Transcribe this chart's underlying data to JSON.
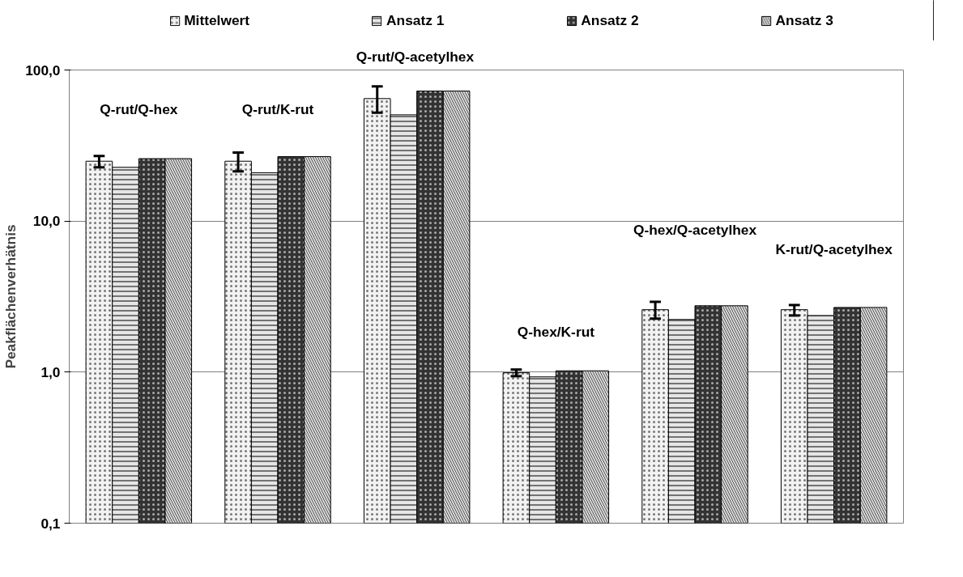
{
  "chart_data": {
    "type": "bar",
    "categories": [
      null,
      null,
      null,
      null,
      null,
      null
    ],
    "series": [
      {
        "name": "Mittelwert",
        "color": "#f2f2f2",
        "values": [
          24.9,
          24.9,
          64.7,
          0.99,
          2.59,
          2.59
        ],
        "errors": [
          [
            22.7,
            27.0
          ],
          [
            21.3,
            28.4
          ],
          [
            52.2,
            77.8
          ],
          [
            0.94,
            1.04
          ],
          [
            2.26,
            2.92
          ],
          [
            2.37,
            2.78
          ]
        ]
      },
      {
        "name": "Ansatz 1",
        "color": "#e6e6e6",
        "values": [
          22.7,
          20.9,
          50.5,
          0.93,
          2.23,
          2.37
        ]
      },
      {
        "name": "Ansatz 2",
        "color": "#333333",
        "values": [
          25.9,
          26.7,
          72.6,
          1.02,
          2.75,
          2.68
        ]
      },
      {
        "name": "Ansatz 3",
        "color": "#d9d9d9",
        "values": [
          25.9,
          26.7,
          72.6,
          1.02,
          2.75,
          2.68
        ]
      }
    ],
    "annotations": [
      "Q-rut/Q-hex",
      "Q-rut/K-rut",
      "Q-rut/Q-acetylhex",
      "Q-hex/K-rut",
      "Q-hex/Q-acetylhex",
      "K-rut/Q-acetylhex"
    ],
    "ylabel": "Peakflächenverhätnis",
    "log": true,
    "ylim": [
      0.1,
      100
    ],
    "yticks": [
      {
        "value": 0.1,
        "label": "0,1"
      },
      {
        "value": 1,
        "label": "1,0"
      },
      {
        "value": 10,
        "label": "10,0"
      },
      {
        "value": 100,
        "label": "100,0"
      }
    ],
    "grid": "y",
    "legend": "top"
  }
}
